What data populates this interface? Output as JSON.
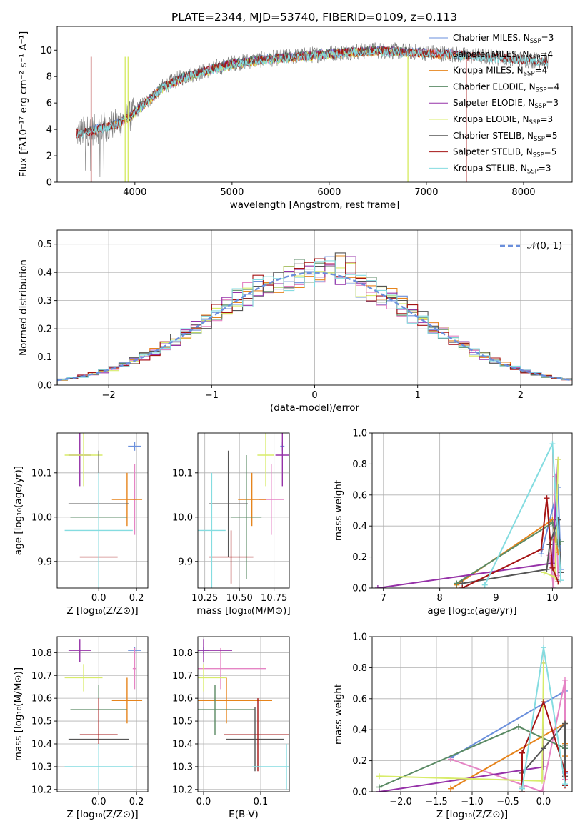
{
  "title": "PLATE=2344, MJD=53740, FIBERID=0109, z=0.113",
  "colors": {
    "Chabrier MILES": "#6a8fdc",
    "Salpeter MILES": "#e584c4",
    "Kroupa MILES": "#e6841c",
    "Chabrier ELODIE": "#5a8a64",
    "Salpeter ELODIE": "#9632a8",
    "Kroupa ELODIE": "#d8ec6a",
    "Chabrier STELIB": "#555555",
    "Salpeter STELIB": "#a51414",
    "Kroupa STELIB": "#84dce0",
    "normal": "#6a8fdc"
  },
  "legend": [
    {
      "name": "Chabrier MILES",
      "label": "Chabrier MILES, N",
      "sub": "SSP",
      "tail": "=3"
    },
    {
      "name": "Salpeter MILES",
      "label": "Salpeter MILES, N",
      "sub": "SSP",
      "tail": "=4"
    },
    {
      "name": "Kroupa MILES",
      "label": "Kroupa MILES, N",
      "sub": "SSP",
      "tail": "=4"
    },
    {
      "name": "Chabrier ELODIE",
      "label": "Chabrier ELODIE, N",
      "sub": "SSP",
      "tail": "=4"
    },
    {
      "name": "Salpeter ELODIE",
      "label": "Salpeter ELODIE, N",
      "sub": "SSP",
      "tail": "=3"
    },
    {
      "name": "Kroupa ELODIE",
      "label": "Kroupa ELODIE, N",
      "sub": "SSP",
      "tail": "=3"
    },
    {
      "name": "Chabrier STELIB",
      "label": "Chabrier STELIB, N",
      "sub": "SSP",
      "tail": "=5"
    },
    {
      "name": "Salpeter STELIB",
      "label": "Salpeter STELIB, N",
      "sub": "SSP",
      "tail": "=5"
    },
    {
      "name": "Kroupa STELIB",
      "label": "Kroupa STELIB, N",
      "sub": "SSP",
      "tail": "=3"
    }
  ],
  "chart_data": [
    {
      "id": "spectrum",
      "type": "line",
      "xlabel": "wavelength [Angstrom, rest frame]",
      "ylabel": "Flux [fλ10⁻¹⁷ erg cm⁻² s⁻¹ A⁻¹]",
      "xlim": [
        3200,
        8500
      ],
      "ylim": [
        0,
        11.8
      ],
      "xticks": [
        4000,
        5000,
        6000,
        7000,
        8000
      ],
      "yticks": [
        0,
        2,
        4,
        6,
        8,
        10
      ],
      "continuum": {
        "x": [
          3400,
          3600,
          3800,
          3950,
          4100,
          4300,
          4500,
          4800,
          5000,
          5300,
          5600,
          5900,
          6200,
          6500,
          6800,
          7100,
          7400,
          7700,
          8000,
          8250
        ],
        "y": [
          3.7,
          4.0,
          4.4,
          5.0,
          6.0,
          7.3,
          8.0,
          8.6,
          9.0,
          9.3,
          9.5,
          9.7,
          9.9,
          10.0,
          9.9,
          9.8,
          9.6,
          9.5,
          9.3,
          9.2
        ]
      }
    },
    {
      "id": "residuals",
      "type": "histogram",
      "xlabel": "(data-model)/error",
      "ylabel": "Normed distribution",
      "xlim": [
        -2.5,
        2.5
      ],
      "ylim": [
        0,
        0.55
      ],
      "xticks": [
        -2,
        -1,
        0,
        1,
        2
      ],
      "yticks": [
        0.0,
        0.1,
        0.2,
        0.3,
        0.4,
        0.5
      ],
      "normal_label": "𝒩(0, 1)"
    },
    {
      "id": "age-vs-z",
      "type": "scatter",
      "xlabel": "Z [log₁₀(Z/Z⊙)]",
      "ylabel": "age  [log₁₀(age/yr)]",
      "xlim": [
        -0.22,
        0.26
      ],
      "ylim": [
        9.84,
        10.19
      ],
      "xticks": [
        0.0,
        0.2
      ],
      "yticks": [
        9.9,
        10.0,
        10.1
      ]
    },
    {
      "id": "age-vs-mass",
      "type": "scatter",
      "xlabel": "mass [log₁₀(M/M⊙)]",
      "ylabel": "",
      "xlim": [
        10.2,
        10.86
      ],
      "ylim": [
        9.84,
        10.19
      ],
      "xticks": [
        10.25,
        10.5,
        10.75
      ],
      "yticks": [
        9.9,
        10.0,
        10.1
      ]
    },
    {
      "id": "weight-vs-age",
      "type": "line",
      "xlabel": "age  [log₁₀(age/yr)]",
      "ylabel": "mass weight",
      "xlim": [
        6.8,
        10.35
      ],
      "ylim": [
        0,
        1.0
      ],
      "xticks": [
        7,
        8,
        9,
        10
      ],
      "yticks": [
        0.0,
        0.2,
        0.4,
        0.6,
        0.8,
        1.0
      ]
    },
    {
      "id": "mass-vs-z",
      "type": "scatter",
      "xlabel": "Z [log₁₀(Z/Z⊙)]",
      "ylabel": "mass [log₁₀(M/M⊙)]",
      "xlim": [
        -0.22,
        0.26
      ],
      "ylim": [
        10.19,
        10.87
      ],
      "xticks": [
        0.0,
        0.2
      ],
      "yticks": [
        10.2,
        10.3,
        10.4,
        10.5,
        10.6,
        10.7,
        10.8
      ]
    },
    {
      "id": "mass-vs-ebv",
      "type": "scatter",
      "xlabel": "E(B-V)",
      "ylabel": "",
      "xlim": [
        -0.01,
        0.15
      ],
      "ylim": [
        10.19,
        10.87
      ],
      "xticks": [
        0.0,
        0.1
      ],
      "yticks": [
        10.2,
        10.3,
        10.4,
        10.5,
        10.6,
        10.7,
        10.8
      ]
    },
    {
      "id": "weight-vs-z",
      "type": "line",
      "xlabel": "Z [log₁₀(Z/Z⊙)]",
      "ylabel": "mass weight",
      "xlim": [
        -2.4,
        0.4
      ],
      "ylim": [
        0,
        1.0
      ],
      "xticks": [
        -2.0,
        -1.5,
        -1.0,
        -0.5,
        0.0
      ],
      "yticks": [
        0.0,
        0.2,
        0.4,
        0.6,
        0.8,
        1.0
      ]
    }
  ],
  "models": [
    {
      "name": "Chabrier MILES",
      "Z": 0.19,
      "Zerr": 0.035,
      "age": 10.16,
      "ageErr": 0.01,
      "mass": 10.81,
      "massErr": 0.015,
      "ebv": 0.0,
      "ebvErr": 0.01,
      "ssp": [
        {
          "age": 9.8,
          "Z": -1.3,
          "w": 0.22
        },
        {
          "age": 10.1,
          "Z": 0.3,
          "w": 0.65
        },
        {
          "age": 10.15,
          "Z": 0.3,
          "w": 0.12
        }
      ]
    },
    {
      "name": "Salpeter MILES",
      "Z": 0.19,
      "Zerr": 0.01,
      "age": 10.04,
      "ageErr": 0.08,
      "mass": 10.73,
      "massErr": 0.09,
      "ebv": 0.03,
      "ebvErr": 0.08,
      "ssp": [
        {
          "age": 9.95,
          "Z": -1.3,
          "w": 0.21
        },
        {
          "age": 10.02,
          "Z": -0.02,
          "w": 0.0
        },
        {
          "age": 10.05,
          "Z": 0.3,
          "w": 0.72
        },
        {
          "age": 10.1,
          "Z": 0.3,
          "w": 0.08
        }
      ]
    },
    {
      "name": "Kroupa MILES",
      "Z": 0.15,
      "Zerr": 0.08,
      "age": 10.04,
      "ageErr": 0.06,
      "mass": 10.59,
      "massErr": 0.1,
      "ebv": 0.04,
      "ebvErr": 0.08,
      "ssp": [
        {
          "age": 8.3,
          "Z": -1.3,
          "w": 0.02
        },
        {
          "age": 10.0,
          "Z": 0.3,
          "w": 0.44
        },
        {
          "age": 10.05,
          "Z": 0.3,
          "w": 0.31
        },
        {
          "age": 10.1,
          "Z": 0.3,
          "w": 0.23
        }
      ]
    },
    {
      "name": "Chabrier ELODIE",
      "Z": 0.0,
      "Zerr": 0.15,
      "age": 10.0,
      "ageErr": 0.14,
      "mass": 10.55,
      "massErr": 0.11,
      "ebv": 0.02,
      "ebvErr": 0.07,
      "ssp": [
        {
          "age": 8.3,
          "Z": -2.3,
          "w": 0.03
        },
        {
          "age": 10.0,
          "Z": -0.35,
          "w": 0.42
        },
        {
          "age": 10.1,
          "Z": 0.3,
          "w": 0.28
        },
        {
          "age": 10.15,
          "Z": 0.3,
          "w": 0.3
        }
      ]
    },
    {
      "name": "Salpeter ELODIE",
      "Z": -0.1,
      "Zerr": 0.06,
      "age": 10.14,
      "ageErr": 0.07,
      "mass": 10.81,
      "massErr": 0.05,
      "ebv": 0.0,
      "ebvErr": 0.05,
      "ssp": [
        {
          "age": 6.9,
          "Z": -2.3,
          "w": 0.0
        },
        {
          "age": 10.0,
          "Z": -0.0,
          "w": 0.16
        },
        {
          "age": 10.1,
          "Z": -0.0,
          "w": 0.83
        }
      ]
    },
    {
      "name": "Kroupa ELODIE",
      "Z": -0.08,
      "Zerr": 0.1,
      "age": 10.14,
      "ageErr": 0.07,
      "mass": 10.69,
      "massErr": 0.06,
      "ebv": 0.0,
      "ebvErr": 0.04,
      "ssp": [
        {
          "age": 9.85,
          "Z": -2.3,
          "w": 0.1
        },
        {
          "age": 10.05,
          "Z": -0.02,
          "w": 0.07
        },
        {
          "age": 10.1,
          "Z": 0.0,
          "w": 0.83
        }
      ]
    },
    {
      "name": "Chabrier STELIB",
      "Z": 0.0,
      "Zerr": 0.16,
      "age": 10.03,
      "ageErr": 0.12,
      "mass": 10.42,
      "massErr": 0.14,
      "ebv": 0.09,
      "ebvErr": 0.05,
      "ssp": [
        {
          "age": 8.4,
          "Z": -0.3,
          "w": 0.03
        },
        {
          "age": 9.9,
          "Z": -0.3,
          "w": 0.12
        },
        {
          "age": 9.95,
          "Z": 0.0,
          "w": 0.28
        },
        {
          "age": 10.1,
          "Z": 0.3,
          "w": 0.44
        },
        {
          "age": 10.15,
          "Z": 0.3,
          "w": 0.1
        }
      ]
    },
    {
      "name": "Salpeter STELIB",
      "Z": 0.0,
      "Zerr": 0.1,
      "age": 9.91,
      "ageErr": 0.06,
      "mass": 10.44,
      "massErr": 0.16,
      "ebv": 0.095,
      "ebvErr": 0.06,
      "ssp": [
        {
          "age": 8.4,
          "Z": -0.3,
          "w": 0.0
        },
        {
          "age": 9.8,
          "Z": -0.3,
          "w": 0.25
        },
        {
          "age": 9.9,
          "Z": 0.0,
          "w": 0.58
        },
        {
          "age": 10.0,
          "Z": 0.3,
          "w": 0.13
        },
        {
          "age": 10.1,
          "Z": 0.3,
          "w": 0.04
        }
      ]
    },
    {
      "name": "Kroupa STELIB",
      "Z": 0.0,
      "Zerr": 0.18,
      "age": 9.97,
      "ageErr": 0.13,
      "mass": 10.3,
      "massErr": 0.1,
      "ebv": 0.145,
      "ebvErr": 0.06,
      "ssp": [
        {
          "age": 8.8,
          "Z": -0.3,
          "w": 0.02
        },
        {
          "age": 10.0,
          "Z": 0.0,
          "w": 0.93
        },
        {
          "age": 10.15,
          "Z": 0.3,
          "w": 0.05
        }
      ]
    }
  ]
}
